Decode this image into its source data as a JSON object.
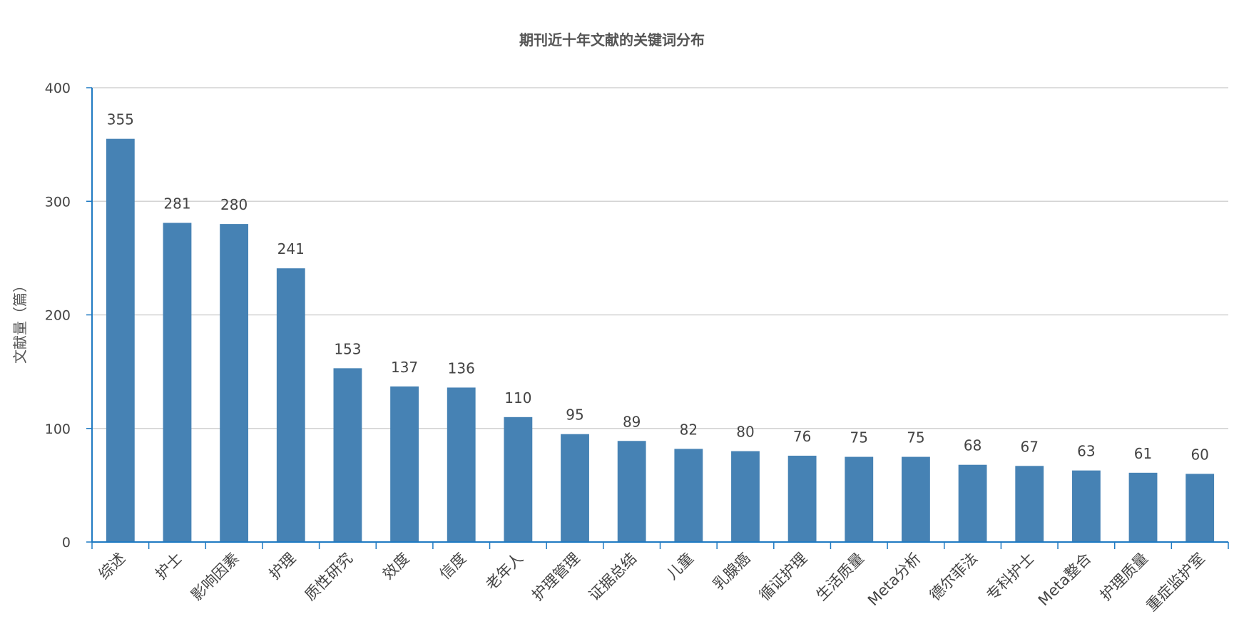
{
  "chart_data": {
    "type": "bar",
    "title": "期刊近十年文献的关键词分布",
    "xlabel": "",
    "ylabel": "文献量（篇）",
    "ylim": [
      0,
      400
    ],
    "yticks": [
      0,
      100,
      200,
      300,
      400
    ],
    "grid": true,
    "colors": {
      "bar": "#4682b4",
      "axis": "#1f7ac2",
      "grid": "#d3d3d3",
      "text": "#444444"
    },
    "categories": [
      "综述",
      "护士",
      "影响因素",
      "护理",
      "质性研究",
      "效度",
      "信度",
      "老年人",
      "护理管理",
      "证据总结",
      "儿童",
      "乳腺癌",
      "循证护理",
      "生活质量",
      "Meta分析",
      "德尔菲法",
      "专科护士",
      "Meta整合",
      "护理质量",
      "重症监护室"
    ],
    "values": [
      355,
      281,
      280,
      241,
      153,
      137,
      136,
      110,
      95,
      89,
      82,
      80,
      76,
      75,
      75,
      68,
      67,
      63,
      61,
      60
    ],
    "series": [
      {
        "name": "",
        "values": [
          355,
          281,
          280,
          241,
          153,
          137,
          136,
          110,
          95,
          89,
          82,
          80,
          76,
          75,
          75,
          68,
          67,
          63,
          61,
          60
        ]
      }
    ]
  }
}
